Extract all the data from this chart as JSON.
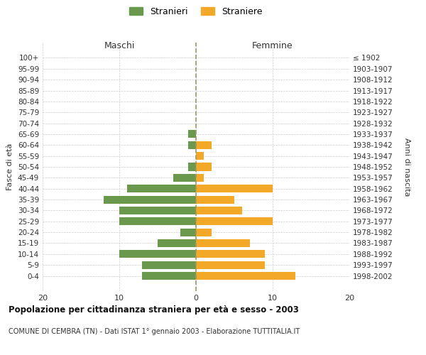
{
  "age_groups": [
    "100+",
    "95-99",
    "90-94",
    "85-89",
    "80-84",
    "75-79",
    "70-74",
    "65-69",
    "60-64",
    "55-59",
    "50-54",
    "45-49",
    "40-44",
    "35-39",
    "30-34",
    "25-29",
    "20-24",
    "15-19",
    "10-14",
    "5-9",
    "0-4"
  ],
  "birth_years": [
    "≤ 1902",
    "1903-1907",
    "1908-1912",
    "1913-1917",
    "1918-1922",
    "1923-1927",
    "1928-1932",
    "1933-1937",
    "1938-1942",
    "1943-1947",
    "1948-1952",
    "1953-1957",
    "1958-1962",
    "1963-1967",
    "1968-1972",
    "1973-1977",
    "1978-1982",
    "1983-1987",
    "1988-1992",
    "1993-1997",
    "1998-2002"
  ],
  "males": [
    0,
    0,
    0,
    0,
    0,
    0,
    0,
    1,
    1,
    0,
    1,
    3,
    9,
    12,
    10,
    10,
    2,
    5,
    10,
    7,
    7
  ],
  "females": [
    0,
    0,
    0,
    0,
    0,
    0,
    0,
    0,
    2,
    1,
    2,
    1,
    10,
    5,
    6,
    10,
    2,
    7,
    9,
    9,
    13
  ],
  "male_color": "#6a994e",
  "female_color": "#f4a828",
  "title": "Popolazione per cittadinanza straniera per età e sesso - 2003",
  "subtitle": "COMUNE DI CEMBRA (TN) - Dati ISTAT 1° gennaio 2003 - Elaborazione TUTTITALIA.IT",
  "xlabel_left": "Maschi",
  "xlabel_right": "Femmine",
  "ylabel_left": "Fasce di età",
  "ylabel_right": "Anni di nascita",
  "legend_males": "Stranieri",
  "legend_females": "Straniere",
  "xlim": 20,
  "background_color": "#ffffff",
  "grid_color": "#cccccc",
  "dashed_line_color": "#999966"
}
